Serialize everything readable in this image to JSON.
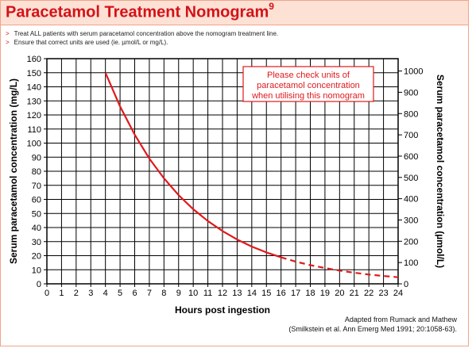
{
  "header": {
    "title": "Paracetamol Treatment Nomogram",
    "title_superscript": "9",
    "title_color": "#d41219",
    "band_color": "#fde1d5"
  },
  "notes": [
    {
      "bullet": ">",
      "text": "Treat ALL patients with serum paracetamol concentration above the nomogram treatment line."
    },
    {
      "bullet": ">",
      "text": "Ensure that correct units are used (ie. µmol/L or mg/L)."
    }
  ],
  "source": {
    "line1": "Adapted from Rumack and Mathew",
    "line2": "(Smilkstein et al. Ann Emerg Med 1991; 20:1058-63)."
  },
  "chart_data": {
    "type": "line",
    "xlabel": "Hours post ingestion",
    "ylabel": "Serum paracetamol concentration (mg/L)",
    "y2label": "Serum paracetamol concentration (µmol/L)",
    "xlim": [
      0,
      24
    ],
    "ylim": [
      0,
      160
    ],
    "y2lim": [
      0,
      1058
    ],
    "x_ticks": [
      0,
      1,
      2,
      3,
      4,
      5,
      6,
      7,
      8,
      9,
      10,
      11,
      12,
      13,
      14,
      15,
      16,
      17,
      18,
      19,
      20,
      21,
      22,
      23,
      24
    ],
    "y_ticks": [
      0,
      10,
      20,
      30,
      40,
      50,
      60,
      70,
      80,
      90,
      100,
      110,
      120,
      130,
      140,
      150,
      160
    ],
    "y2_ticks": [
      0,
      100,
      200,
      300,
      400,
      500,
      600,
      700,
      800,
      900,
      1000
    ],
    "grid": true,
    "line_color": "#e0191c",
    "annotation": {
      "lines": [
        "Please check units of",
        "paracetamol concentration",
        "when utilising this nomogram"
      ],
      "color": "#e0191c"
    },
    "series": [
      {
        "style": "solid",
        "x": [
          4,
          5,
          6,
          7,
          8,
          9,
          10,
          11,
          12,
          13,
          14,
          15,
          16
        ],
        "y": [
          150,
          126,
          106,
          89,
          75,
          63,
          53,
          44.6,
          37.5,
          31.5,
          26.5,
          22.3,
          18.8
        ]
      },
      {
        "style": "dashed",
        "x": [
          16,
          17,
          18,
          19,
          20,
          21,
          22,
          23,
          24
        ],
        "y": [
          18.8,
          15.8,
          13.3,
          11.2,
          9.4,
          7.9,
          6.6,
          5.6,
          4.7
        ]
      }
    ]
  }
}
